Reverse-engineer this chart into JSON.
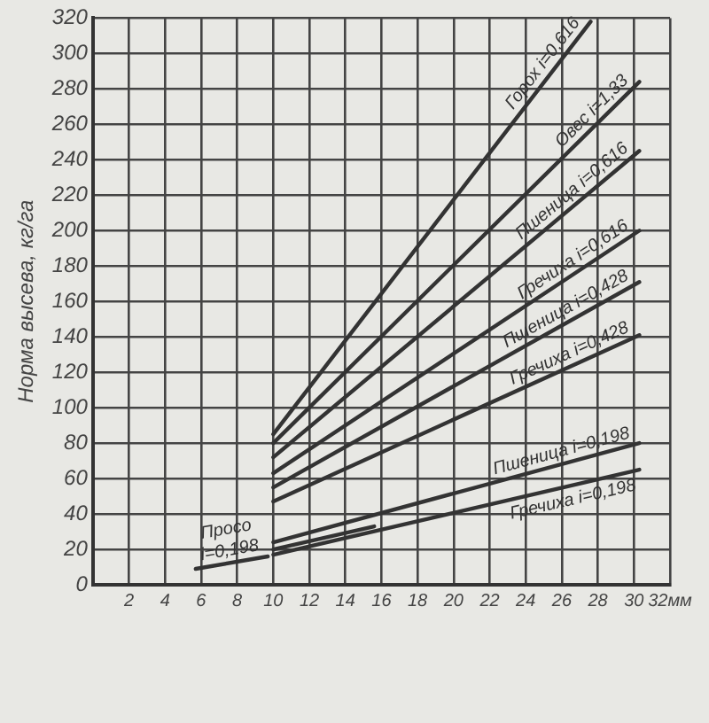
{
  "chart_data": {
    "type": "line",
    "ylabel": "Норма высева, кг/га",
    "xlim": [
      0,
      32
    ],
    "xticks": [
      2,
      4,
      6,
      8,
      10,
      12,
      14,
      16,
      18,
      20,
      22,
      24,
      26,
      28,
      30,
      {
        "value": 32,
        "label": "32мм"
      }
    ],
    "ylim": [
      0,
      320
    ],
    "yticks": [
      0,
      20,
      40,
      60,
      80,
      100,
      120,
      140,
      160,
      180,
      200,
      220,
      240,
      260,
      280,
      300,
      320
    ],
    "grid": true,
    "legend": false,
    "marker": "none",
    "line_style": "solid",
    "series": [
      {
        "name": "Горох i=0,616",
        "color": "#333333",
        "x": [
          10,
          27.6
        ],
        "values": [
          85,
          318
        ]
      },
      {
        "name": "Овес i=1,33",
        "color": "#333333",
        "x": [
          10,
          30.3
        ],
        "values": [
          80,
          284
        ]
      },
      {
        "name": "Пшеница i=0,616",
        "color": "#333333",
        "x": [
          10,
          30.3
        ],
        "values": [
          72,
          245
        ]
      },
      {
        "name": "Гречиха i=0,616",
        "color": "#333333",
        "x": [
          10,
          30.3
        ],
        "values": [
          63,
          200
        ]
      },
      {
        "name": "Пшеница i=0,428",
        "color": "#333333",
        "x": [
          10,
          30.3
        ],
        "values": [
          55,
          171
        ]
      },
      {
        "name": "Гречиха i=0,428",
        "color": "#333333",
        "x": [
          10,
          30.3
        ],
        "values": [
          47,
          141
        ]
      },
      {
        "name": "Пшеница i=0,198",
        "color": "#333333",
        "x": [
          10,
          30.3
        ],
        "values": [
          24,
          80
        ]
      },
      {
        "color": "#333333",
        "x": [
          10,
          15.6
        ],
        "values": [
          20,
          33
        ]
      },
      {
        "name": "Гречиха i=0,198",
        "color": "#333333",
        "x": [
          10,
          30.3
        ],
        "values": [
          17,
          65
        ]
      },
      {
        "name": "Просо i=0,198",
        "color": "#333333",
        "x": [
          5.7,
          9.7
        ],
        "values": [
          9,
          16
        ]
      }
    ]
  }
}
